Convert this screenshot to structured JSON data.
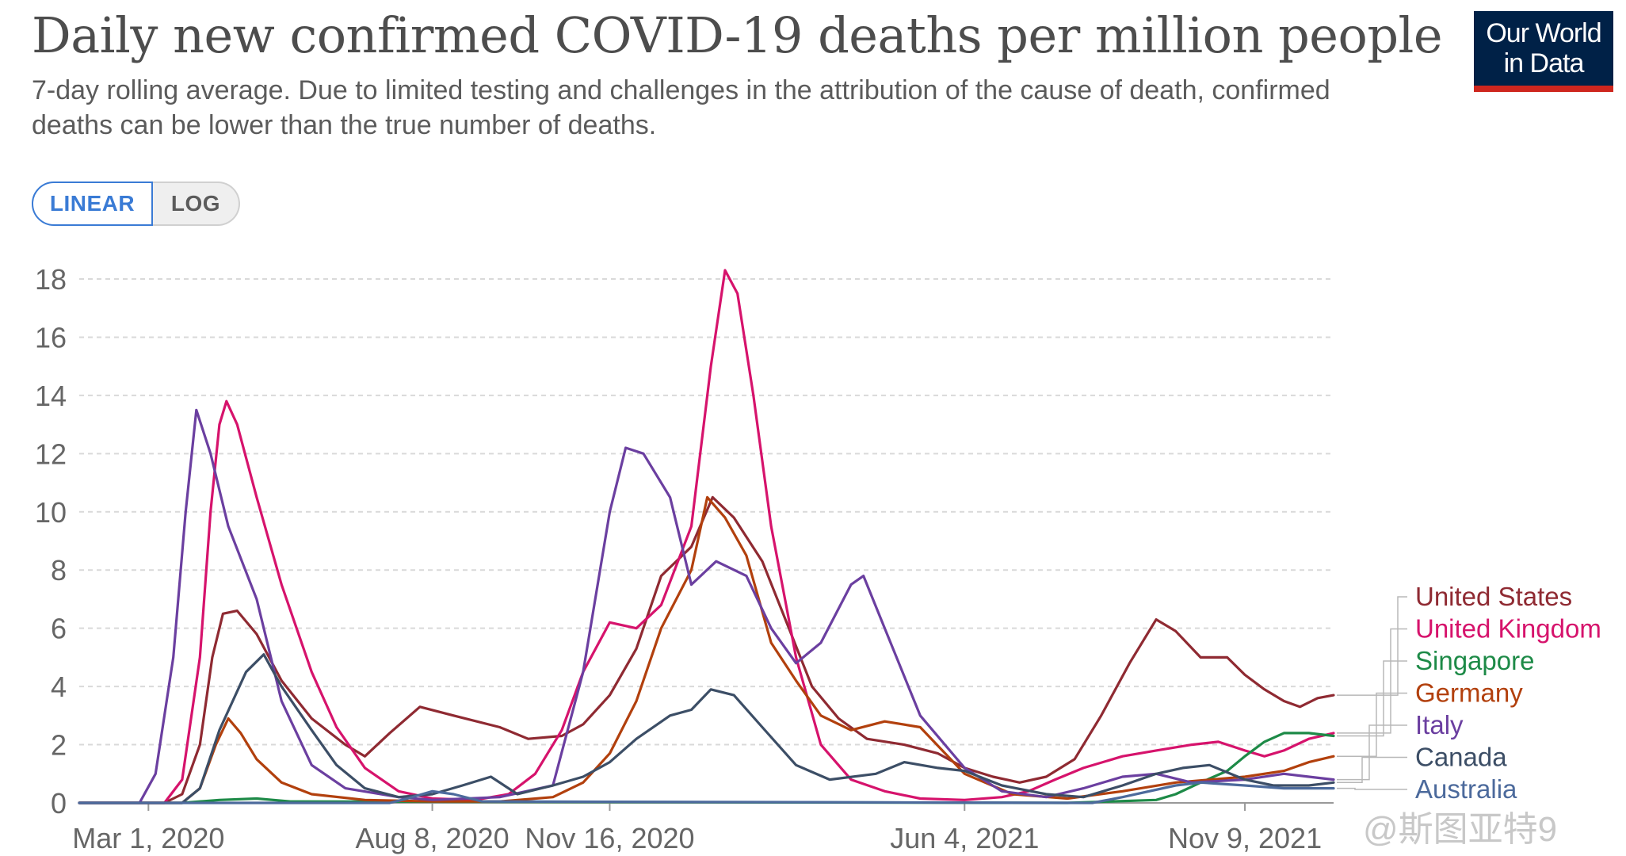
{
  "header": {
    "title": "Daily new confirmed COVID-19 deaths per million people",
    "subtitle": "7-day rolling average. Due to limited testing and challenges in the attribution of the cause of death, confirmed deaths can be lower than the true number of deaths.",
    "logo_line1": "Our World",
    "logo_line2": "in Data"
  },
  "scale_toggle": {
    "linear_label": "LINEAR",
    "log_label": "LOG",
    "selected": "LINEAR"
  },
  "watermark": "@斯图亚特9",
  "chart_data": {
    "type": "line",
    "title": "Daily new confirmed COVID-19 deaths per million people",
    "subtitle": "7-day rolling average. Due to limited testing and challenges in the attribution of the cause of death, confirmed deaths can be lower than the true number of deaths.",
    "xlabel": "",
    "ylabel": "",
    "ylim": [
      0,
      18
    ],
    "y_ticks": [
      0,
      2,
      4,
      6,
      8,
      10,
      12,
      14,
      16,
      18
    ],
    "x_ticks": [
      {
        "date": "2020-03-01",
        "label": "Mar 1, 2020"
      },
      {
        "date": "2020-08-08",
        "label": "Aug 8, 2020"
      },
      {
        "date": "2020-11-16",
        "label": "Nov 16, 2020"
      },
      {
        "date": "2021-06-04",
        "label": "Jun 4, 2021"
      },
      {
        "date": "2021-11-09",
        "label": "Nov 9, 2021"
      }
    ],
    "xlim": [
      "2020-01-22",
      "2021-12-29"
    ],
    "grid": true,
    "legend_position": "right",
    "series": [
      {
        "name": "United States",
        "color": "#8f2a32",
        "points": [
          [
            "2020-01-22",
            0
          ],
          [
            "2020-03-10",
            0
          ],
          [
            "2020-03-20",
            0.3
          ],
          [
            "2020-03-30",
            2.0
          ],
          [
            "2020-04-06",
            5.0
          ],
          [
            "2020-04-12",
            6.5
          ],
          [
            "2020-04-20",
            6.6
          ],
          [
            "2020-05-01",
            5.8
          ],
          [
            "2020-05-15",
            4.2
          ],
          [
            "2020-06-01",
            2.9
          ],
          [
            "2020-06-20",
            2.0
          ],
          [
            "2020-07-01",
            1.6
          ],
          [
            "2020-07-15",
            2.4
          ],
          [
            "2020-08-01",
            3.3
          ],
          [
            "2020-08-20",
            3.0
          ],
          [
            "2020-09-15",
            2.6
          ],
          [
            "2020-10-01",
            2.2
          ],
          [
            "2020-10-20",
            2.3
          ],
          [
            "2020-11-01",
            2.7
          ],
          [
            "2020-11-16",
            3.7
          ],
          [
            "2020-12-01",
            5.3
          ],
          [
            "2020-12-15",
            7.8
          ],
          [
            "2021-01-01",
            8.8
          ],
          [
            "2021-01-13",
            10.5
          ],
          [
            "2021-01-25",
            9.8
          ],
          [
            "2021-02-10",
            8.3
          ],
          [
            "2021-02-25",
            6.0
          ],
          [
            "2021-03-10",
            4.0
          ],
          [
            "2021-03-25",
            2.9
          ],
          [
            "2021-04-10",
            2.2
          ],
          [
            "2021-05-01",
            2.0
          ],
          [
            "2021-05-20",
            1.7
          ],
          [
            "2021-06-04",
            1.2
          ],
          [
            "2021-06-20",
            0.9
          ],
          [
            "2021-07-05",
            0.7
          ],
          [
            "2021-07-20",
            0.9
          ],
          [
            "2021-08-05",
            1.5
          ],
          [
            "2021-08-20",
            3.0
          ],
          [
            "2021-09-05",
            4.8
          ],
          [
            "2021-09-20",
            6.3
          ],
          [
            "2021-10-01",
            5.9
          ],
          [
            "2021-10-15",
            5.0
          ],
          [
            "2021-10-30",
            5.0
          ],
          [
            "2021-11-09",
            4.4
          ],
          [
            "2021-11-20",
            3.9
          ],
          [
            "2021-12-01",
            3.5
          ],
          [
            "2021-12-10",
            3.3
          ],
          [
            "2021-12-20",
            3.6
          ],
          [
            "2021-12-29",
            3.7
          ]
        ]
      },
      {
        "name": "United Kingdom",
        "color": "#d6136c",
        "points": [
          [
            "2020-01-22",
            0
          ],
          [
            "2020-03-10",
            0
          ],
          [
            "2020-03-20",
            0.8
          ],
          [
            "2020-03-30",
            5.0
          ],
          [
            "2020-04-05",
            10.0
          ],
          [
            "2020-04-10",
            13.0
          ],
          [
            "2020-04-14",
            13.8
          ],
          [
            "2020-04-20",
            13.0
          ],
          [
            "2020-05-01",
            10.5
          ],
          [
            "2020-05-15",
            7.5
          ],
          [
            "2020-06-01",
            4.5
          ],
          [
            "2020-06-15",
            2.6
          ],
          [
            "2020-07-01",
            1.2
          ],
          [
            "2020-07-20",
            0.4
          ],
          [
            "2020-08-08",
            0.15
          ],
          [
            "2020-09-01",
            0.1
          ],
          [
            "2020-09-20",
            0.3
          ],
          [
            "2020-10-05",
            1.0
          ],
          [
            "2020-10-20",
            2.5
          ],
          [
            "2020-11-01",
            4.5
          ],
          [
            "2020-11-16",
            6.2
          ],
          [
            "2020-12-01",
            6.0
          ],
          [
            "2020-12-15",
            6.8
          ],
          [
            "2021-01-01",
            9.5
          ],
          [
            "2021-01-12",
            15.0
          ],
          [
            "2021-01-20",
            18.3
          ],
          [
            "2021-01-27",
            17.5
          ],
          [
            "2021-02-05",
            14.0
          ],
          [
            "2021-02-15",
            9.5
          ],
          [
            "2021-03-01",
            5.0
          ],
          [
            "2021-03-15",
            2.0
          ],
          [
            "2021-04-01",
            0.8
          ],
          [
            "2021-04-20",
            0.4
          ],
          [
            "2021-05-10",
            0.15
          ],
          [
            "2021-06-04",
            0.1
          ],
          [
            "2021-06-25",
            0.2
          ],
          [
            "2021-07-10",
            0.4
          ],
          [
            "2021-07-25",
            0.8
          ],
          [
            "2021-08-10",
            1.2
          ],
          [
            "2021-09-01",
            1.6
          ],
          [
            "2021-09-20",
            1.8
          ],
          [
            "2021-10-10",
            2.0
          ],
          [
            "2021-10-25",
            2.1
          ],
          [
            "2021-11-09",
            1.8
          ],
          [
            "2021-11-20",
            1.6
          ],
          [
            "2021-12-01",
            1.8
          ],
          [
            "2021-12-15",
            2.2
          ],
          [
            "2021-12-29",
            2.4
          ]
        ]
      },
      {
        "name": "Singapore",
        "color": "#1d8a47",
        "points": [
          [
            "2020-01-22",
            0
          ],
          [
            "2020-03-20",
            0
          ],
          [
            "2020-04-10",
            0.1
          ],
          [
            "2020-05-01",
            0.15
          ],
          [
            "2020-05-20",
            0.05
          ],
          [
            "2021-08-01",
            0
          ],
          [
            "2021-09-20",
            0.1
          ],
          [
            "2021-10-01",
            0.3
          ],
          [
            "2021-10-15",
            0.7
          ],
          [
            "2021-10-30",
            1.1
          ],
          [
            "2021-11-09",
            1.6
          ],
          [
            "2021-11-20",
            2.1
          ],
          [
            "2021-12-01",
            2.4
          ],
          [
            "2021-12-15",
            2.4
          ],
          [
            "2021-12-29",
            2.3
          ]
        ]
      },
      {
        "name": "Germany",
        "color": "#b2400d",
        "points": [
          [
            "2020-01-22",
            0
          ],
          [
            "2020-03-20",
            0
          ],
          [
            "2020-03-30",
            0.5
          ],
          [
            "2020-04-08",
            2.0
          ],
          [
            "2020-04-15",
            2.9
          ],
          [
            "2020-04-22",
            2.4
          ],
          [
            "2020-05-01",
            1.5
          ],
          [
            "2020-05-15",
            0.7
          ],
          [
            "2020-06-01",
            0.3
          ],
          [
            "2020-07-01",
            0.1
          ],
          [
            "2020-08-08",
            0.05
          ],
          [
            "2020-09-15",
            0.05
          ],
          [
            "2020-10-15",
            0.2
          ],
          [
            "2020-11-01",
            0.7
          ],
          [
            "2020-11-16",
            1.7
          ],
          [
            "2020-12-01",
            3.5
          ],
          [
            "2020-12-15",
            6.0
          ],
          [
            "2021-01-01",
            8.0
          ],
          [
            "2021-01-10",
            10.5
          ],
          [
            "2021-01-20",
            9.8
          ],
          [
            "2021-02-01",
            8.5
          ],
          [
            "2021-02-15",
            5.5
          ],
          [
            "2021-03-01",
            4.2
          ],
          [
            "2021-03-15",
            3.0
          ],
          [
            "2021-04-01",
            2.5
          ],
          [
            "2021-04-20",
            2.8
          ],
          [
            "2021-05-10",
            2.6
          ],
          [
            "2021-06-04",
            1.0
          ],
          [
            "2021-07-01",
            0.3
          ],
          [
            "2021-08-01",
            0.15
          ],
          [
            "2021-09-01",
            0.4
          ],
          [
            "2021-10-01",
            0.7
          ],
          [
            "2021-11-09",
            0.9
          ],
          [
            "2021-12-01",
            1.1
          ],
          [
            "2021-12-15",
            1.4
          ],
          [
            "2021-12-29",
            1.6
          ]
        ]
      },
      {
        "name": "Italy",
        "color": "#6b3fa0",
        "points": [
          [
            "2020-01-22",
            0
          ],
          [
            "2020-02-25",
            0
          ],
          [
            "2020-03-05",
            1.0
          ],
          [
            "2020-03-15",
            5.0
          ],
          [
            "2020-03-22",
            10.0
          ],
          [
            "2020-03-28",
            13.5
          ],
          [
            "2020-04-05",
            12.0
          ],
          [
            "2020-04-15",
            9.5
          ],
          [
            "2020-05-01",
            7.0
          ],
          [
            "2020-05-15",
            3.5
          ],
          [
            "2020-06-01",
            1.3
          ],
          [
            "2020-06-20",
            0.5
          ],
          [
            "2020-07-20",
            0.2
          ],
          [
            "2020-08-08",
            0.1
          ],
          [
            "2020-09-15",
            0.2
          ],
          [
            "2020-10-15",
            0.6
          ],
          [
            "2020-11-01",
            4.5
          ],
          [
            "2020-11-16",
            10.0
          ],
          [
            "2020-11-25",
            12.2
          ],
          [
            "2020-12-05",
            12.0
          ],
          [
            "2020-12-20",
            10.5
          ],
          [
            "2021-01-01",
            7.5
          ],
          [
            "2021-01-15",
            8.3
          ],
          [
            "2021-02-01",
            7.8
          ],
          [
            "2021-02-15",
            6.0
          ],
          [
            "2021-03-01",
            4.8
          ],
          [
            "2021-03-15",
            5.5
          ],
          [
            "2021-04-01",
            7.5
          ],
          [
            "2021-04-08",
            7.8
          ],
          [
            "2021-04-20",
            6.0
          ],
          [
            "2021-05-10",
            3.0
          ],
          [
            "2021-06-04",
            1.2
          ],
          [
            "2021-06-25",
            0.4
          ],
          [
            "2021-07-20",
            0.2
          ],
          [
            "2021-08-10",
            0.5
          ],
          [
            "2021-09-01",
            0.9
          ],
          [
            "2021-09-20",
            1.0
          ],
          [
            "2021-10-10",
            0.7
          ],
          [
            "2021-11-09",
            0.8
          ],
          [
            "2021-12-01",
            1.0
          ],
          [
            "2021-12-15",
            0.9
          ],
          [
            "2021-12-29",
            0.8
          ]
        ]
      },
      {
        "name": "Canada",
        "color": "#3c4e66",
        "points": [
          [
            "2020-01-22",
            0
          ],
          [
            "2020-03-20",
            0
          ],
          [
            "2020-03-30",
            0.5
          ],
          [
            "2020-04-10",
            2.5
          ],
          [
            "2020-04-25",
            4.5
          ],
          [
            "2020-05-05",
            5.1
          ],
          [
            "2020-05-15",
            4.0
          ],
          [
            "2020-06-01",
            2.5
          ],
          [
            "2020-06-15",
            1.3
          ],
          [
            "2020-07-01",
            0.5
          ],
          [
            "2020-07-20",
            0.2
          ],
          [
            "2020-08-08",
            0.3
          ],
          [
            "2020-08-25",
            0.6
          ],
          [
            "2020-09-10",
            0.9
          ],
          [
            "2020-09-25",
            0.3
          ],
          [
            "2020-10-15",
            0.6
          ],
          [
            "2020-11-01",
            0.9
          ],
          [
            "2020-11-16",
            1.4
          ],
          [
            "2020-12-01",
            2.2
          ],
          [
            "2020-12-20",
            3.0
          ],
          [
            "2021-01-01",
            3.2
          ],
          [
            "2021-01-12",
            3.9
          ],
          [
            "2021-01-25",
            3.7
          ],
          [
            "2021-02-10",
            2.6
          ],
          [
            "2021-03-01",
            1.3
          ],
          [
            "2021-03-20",
            0.8
          ],
          [
            "2021-04-15",
            1.0
          ],
          [
            "2021-05-01",
            1.4
          ],
          [
            "2021-05-20",
            1.2
          ],
          [
            "2021-06-04",
            1.1
          ],
          [
            "2021-06-25",
            0.6
          ],
          [
            "2021-07-20",
            0.3
          ],
          [
            "2021-08-10",
            0.2
          ],
          [
            "2021-09-01",
            0.6
          ],
          [
            "2021-09-20",
            1.0
          ],
          [
            "2021-10-05",
            1.2
          ],
          [
            "2021-10-20",
            1.3
          ],
          [
            "2021-11-09",
            0.8
          ],
          [
            "2021-11-25",
            0.6
          ],
          [
            "2021-12-15",
            0.6
          ],
          [
            "2021-12-29",
            0.7
          ]
        ]
      },
      {
        "name": "Australia",
        "color": "#4c6a9c",
        "points": [
          [
            "2020-01-22",
            0
          ],
          [
            "2020-07-15",
            0
          ],
          [
            "2020-07-25",
            0.15
          ],
          [
            "2020-08-08",
            0.4
          ],
          [
            "2020-08-20",
            0.3
          ],
          [
            "2020-09-05",
            0.05
          ],
          [
            "2021-08-15",
            0
          ],
          [
            "2021-09-01",
            0.2
          ],
          [
            "2021-10-01",
            0.6
          ],
          [
            "2021-10-15",
            0.7
          ],
          [
            "2021-11-09",
            0.6
          ],
          [
            "2021-12-01",
            0.5
          ],
          [
            "2021-12-29",
            0.5
          ]
        ]
      }
    ]
  }
}
